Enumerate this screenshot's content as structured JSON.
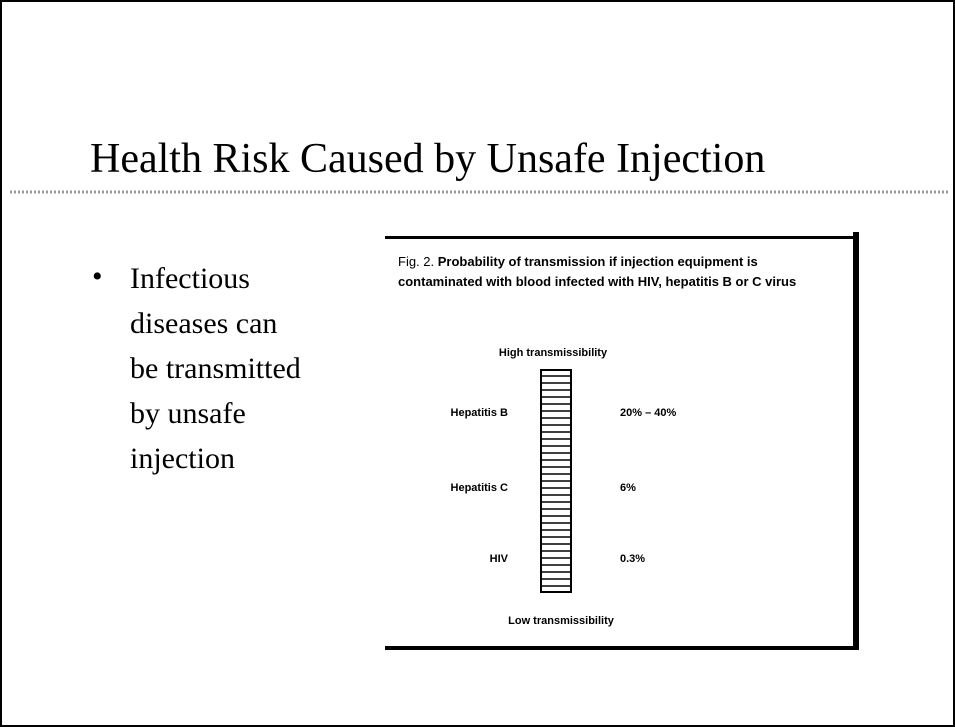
{
  "slide": {
    "title": "Health Risk Caused by Unsafe Injection",
    "bullet": {
      "lines": [
        "Infectious",
        "diseases can",
        "be transmitted",
        "by unsafe",
        "injection"
      ]
    },
    "figure": {
      "label": "Fig. 2.",
      "caption": [
        "Probability of transmission if injection equipment is",
        "contaminated with blood infected with HIV, hepatitis B or C virus"
      ],
      "top_label": "High transmissibility",
      "bottom_label": "Low transmissibility",
      "rows": [
        {
          "name": "Hepatitis B",
          "value": "20% – 40%"
        },
        {
          "name": "Hepatitis C",
          "value": "6%"
        },
        {
          "name": "HIV",
          "value": "0.3%"
        }
      ]
    }
  }
}
